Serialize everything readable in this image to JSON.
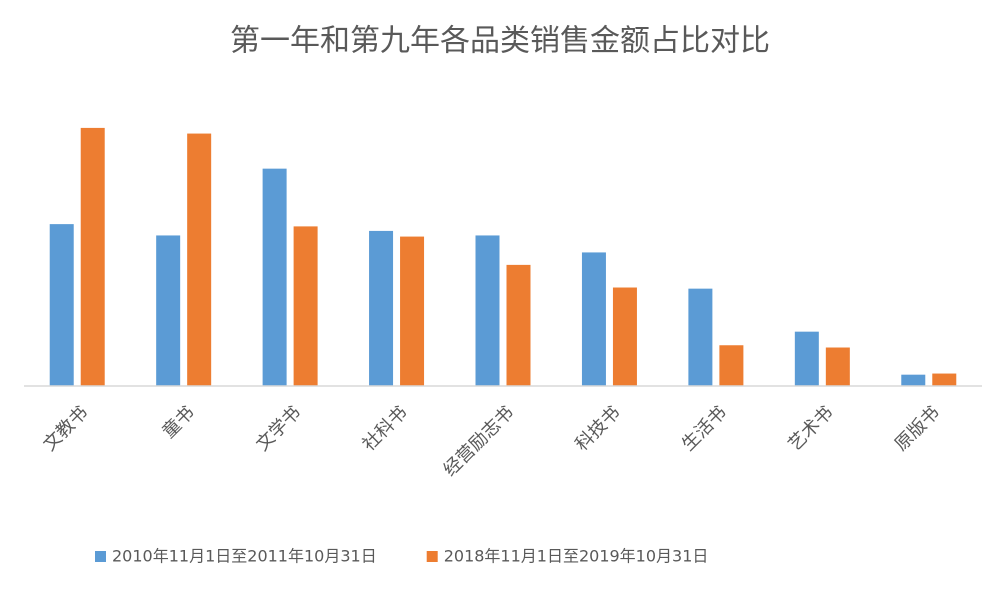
{
  "chart_data": {
    "type": "bar",
    "title": "第一年和第九年各品类销售金额占比对比",
    "categories": [
      "文教书",
      "童书",
      "文学书",
      "社科书",
      "经营励志书",
      "科技书",
      "生活书",
      "艺术书",
      "原版书"
    ],
    "series": [
      {
        "name": "2010年11月1日至2011年10月31日",
        "color": "#5b9bd5",
        "values": [
          14.3,
          13.3,
          19.2,
          13.7,
          13.3,
          11.8,
          8.6,
          4.8,
          1.0
        ]
      },
      {
        "name": "2018年11月1日至2019年10月31日",
        "color": "#ed7d31",
        "values": [
          22.8,
          22.3,
          14.1,
          13.2,
          10.7,
          8.7,
          3.6,
          3.4,
          1.1
        ]
      }
    ],
    "ylim": [
      0,
      25
    ],
    "legend": "bottom"
  }
}
